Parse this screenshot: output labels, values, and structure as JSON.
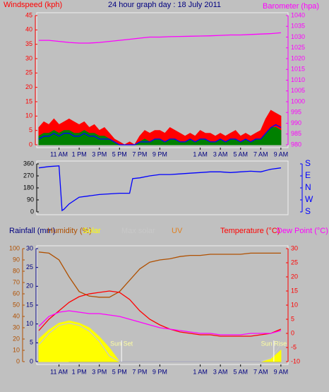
{
  "chart_data": [
    {
      "type": "line",
      "title": "24 hour graph day : 18 July 2011",
      "y_label": "Windspeed (kph)",
      "y2_label": "Barometer (hpa)",
      "ycolor": "#ff0000",
      "y2color": "#ff00ff",
      "xlim": [
        0,
        24.5
      ],
      "xticks": [
        {
          "value": 2,
          "label": "11 AM"
        },
        {
          "value": 4,
          "label": "1 PM"
        },
        {
          "value": 6,
          "label": "3 PM"
        },
        {
          "value": 8,
          "label": "5 PM"
        },
        {
          "value": 10,
          "label": "7 PM"
        },
        {
          "value": 12,
          "label": "9 PM"
        },
        {
          "value": 16,
          "label": "1 AM"
        },
        {
          "value": 18,
          "label": "3 AM"
        },
        {
          "value": 20,
          "label": "5 AM"
        },
        {
          "value": 22,
          "label": "7 AM"
        },
        {
          "value": 24,
          "label": "9 AM"
        }
      ],
      "ylim": [
        0,
        45
      ],
      "yticks": [
        0,
        5,
        10,
        15,
        20,
        25,
        30,
        35,
        40,
        45
      ],
      "y2lim": [
        980,
        1040
      ],
      "y2ticks": [
        980,
        985,
        990,
        995,
        1000,
        1005,
        1010,
        1015,
        1020,
        1025,
        1030,
        1035,
        1040
      ],
      "series": [
        {
          "color": "#ff0000",
          "fill": true,
          "x": [
            0,
            0.5,
            1,
            1.5,
            2,
            2.5,
            3,
            3.5,
            4,
            4.5,
            5,
            5.5,
            6,
            6.5,
            7,
            7.5,
            8,
            8.5,
            9,
            9.5,
            10,
            10.5,
            11,
            11.5,
            12,
            12.5,
            13,
            13.5,
            14,
            14.5,
            15,
            15.5,
            16,
            16.5,
            17,
            17.5,
            18,
            18.5,
            19,
            19.5,
            20,
            20.5,
            21,
            21.5,
            22,
            22.5,
            23,
            23.5,
            24
          ],
          "values": [
            6,
            8,
            7,
            9,
            7,
            8,
            9,
            8,
            7,
            8,
            6,
            7,
            5,
            6,
            4,
            2,
            1,
            0,
            1,
            0,
            3,
            5,
            4,
            5,
            5,
            4,
            6,
            5,
            4,
            3,
            4,
            3,
            5,
            4,
            4,
            3,
            4,
            3,
            4,
            5,
            3,
            4,
            3,
            4,
            5,
            9,
            12,
            11,
            10
          ]
        },
        {
          "color": "#008000",
          "fill": true,
          "x": [
            0,
            0.5,
            1,
            1.5,
            2,
            2.5,
            3,
            3.5,
            4,
            4.5,
            5,
            5.5,
            6,
            6.5,
            7,
            7.5,
            8,
            8.5,
            9,
            9.5,
            10,
            10.5,
            11,
            11.5,
            12,
            12.5,
            13,
            13.5,
            14,
            14.5,
            15,
            15.5,
            16,
            16.5,
            17,
            17.5,
            18,
            18.5,
            19,
            19.5,
            20,
            20.5,
            21,
            21.5,
            22,
            22.5,
            23,
            23.5,
            24
          ],
          "values": [
            3,
            4,
            4,
            5,
            4,
            5,
            5,
            4,
            4,
            5,
            4,
            4,
            3,
            3,
            2,
            1,
            0,
            0,
            0,
            0,
            1,
            2,
            1,
            2,
            2,
            1,
            2,
            2,
            1,
            1,
            2,
            1,
            2,
            2,
            1,
            1,
            2,
            1,
            2,
            2,
            1,
            2,
            1,
            2,
            2,
            4,
            6,
            6,
            5
          ]
        },
        {
          "color": "#0000ff",
          "fill": false,
          "x": [
            0,
            0.5,
            1,
            1.5,
            2,
            2.5,
            3,
            3.5,
            4,
            4.5,
            5,
            5.5,
            6,
            6.5,
            7,
            7.5,
            8,
            8.5,
            9,
            9.5,
            10,
            10.5,
            11,
            11.5,
            12,
            12.5,
            13,
            13.5,
            14,
            14.5,
            15,
            15.5,
            16,
            16.5,
            17,
            17.5,
            18,
            18.5,
            19,
            19.5,
            20,
            20.5,
            21,
            21.5,
            22,
            22.5,
            23,
            23.5,
            24
          ],
          "values": [
            2,
            3,
            3,
            4,
            3,
            4,
            4,
            3,
            3,
            4,
            3,
            3,
            2,
            2,
            2,
            1,
            0,
            0,
            0,
            0,
            1,
            1,
            1,
            2,
            2,
            1,
            2,
            2,
            1,
            1,
            2,
            1,
            2,
            2,
            1,
            1,
            2,
            1,
            2,
            2,
            1,
            2,
            1,
            2,
            2,
            4,
            6,
            7,
            6
          ]
        },
        {
          "color": "#ff00ff",
          "fill": false,
          "axis": "y2",
          "x": [
            0,
            1,
            2,
            3,
            4,
            5,
            6,
            7,
            8,
            9,
            10,
            11,
            12,
            13,
            14,
            15,
            16,
            17,
            18,
            19,
            20,
            21,
            22,
            23,
            24
          ],
          "values": [
            1028.5,
            1028.5,
            1028,
            1027.5,
            1027.2,
            1027.2,
            1027.5,
            1028,
            1028.5,
            1029,
            1029.5,
            1030,
            1030,
            1030.2,
            1030.3,
            1030.4,
            1030.5,
            1030.6,
            1030.8,
            1031,
            1031,
            1031.2,
            1031.4,
            1031.6,
            1032
          ]
        }
      ]
    },
    {
      "type": "line",
      "ycolor": "#000000",
      "y2color": "#0000ff",
      "xlim": [
        0,
        24.5
      ],
      "ylim": [
        0,
        360
      ],
      "yticks": [
        0,
        90,
        180,
        270,
        360
      ],
      "y2lim": [
        0,
        360
      ],
      "y2ticks": [
        {
          "value": 360,
          "label": "S"
        },
        {
          "value": 270,
          "label": "E"
        },
        {
          "value": 180,
          "label": "N"
        },
        {
          "value": 90,
          "label": "W"
        },
        {
          "value": 0,
          "label": "S"
        }
      ],
      "series": [
        {
          "color": "#0000ff",
          "fill": false,
          "x": [
            0,
            1,
            2,
            2.3,
            2.5,
            3,
            4,
            5,
            6,
            7,
            8,
            9,
            9.3,
            10,
            11,
            12,
            13,
            14,
            15,
            16,
            17,
            18,
            19,
            20,
            21,
            22,
            23,
            24
          ],
          "values": [
            330,
            340,
            345,
            10,
            20,
            60,
            110,
            120,
            130,
            135,
            140,
            140,
            250,
            255,
            270,
            280,
            280,
            285,
            290,
            295,
            300,
            300,
            295,
            300,
            305,
            300,
            320,
            330
          ]
        }
      ]
    },
    {
      "type": "line",
      "ycolor": "#b05000",
      "y3color": "#000080",
      "y2color": "#ff0000",
      "xlim": [
        0,
        24.5
      ],
      "xticks": [
        {
          "value": 2,
          "label": "11 AM"
        },
        {
          "value": 4,
          "label": "1 PM"
        },
        {
          "value": 6,
          "label": "3 PM"
        },
        {
          "value": 8,
          "label": "5 PM"
        },
        {
          "value": 10,
          "label": "7 PM"
        },
        {
          "value": 12,
          "label": "9 PM"
        },
        {
          "value": 16,
          "label": "1 AM"
        },
        {
          "value": 18,
          "label": "3 AM"
        },
        {
          "value": 20,
          "label": "5 AM"
        },
        {
          "value": 22,
          "label": "7 AM"
        },
        {
          "value": 24,
          "label": "9 AM"
        }
      ],
      "ylim": [
        0,
        100
      ],
      "yticks": [
        0,
        10,
        20,
        30,
        40,
        50,
        60,
        70,
        80,
        90,
        100
      ],
      "y3lim": [
        0,
        30
      ],
      "y3ticks": [
        0,
        5,
        10,
        15,
        20,
        25,
        30
      ],
      "y2lim": [
        -10,
        30
      ],
      "y2ticks": [
        -10,
        -5,
        0,
        5,
        10,
        15,
        20,
        25,
        30
      ],
      "extra_labels": [
        {
          "text": "UV",
          "color": "#e08020"
        }
      ],
      "annotations": [
        {
          "text": "Sun Set",
          "x": 8.2
        },
        {
          "text": "Sun Rise",
          "x": 23.3
        }
      ],
      "series": [
        {
          "name": "Rainfall (mm)",
          "color": "#000080",
          "fill": false,
          "axis": "y3",
          "x": [
            0,
            1,
            2,
            3,
            4,
            5,
            6,
            7,
            8,
            9,
            10,
            11,
            12,
            13,
            14,
            15,
            16,
            17,
            18,
            19,
            20,
            21,
            22,
            23,
            24
          ],
          "values": [
            0,
            0.3,
            0.3,
            0,
            0,
            0,
            0,
            0,
            0,
            0,
            0,
            0,
            0,
            0,
            0,
            0,
            0,
            0,
            0,
            0,
            0,
            0,
            0,
            0,
            0
          ]
        },
        {
          "name": "Humidity (%)",
          "color": "#b05000",
          "fill": false,
          "x": [
            0,
            1,
            2,
            3,
            4,
            5,
            6,
            7,
            8,
            9,
            10,
            11,
            12,
            13,
            14,
            15,
            16,
            17,
            18,
            19,
            20,
            21,
            22,
            23,
            24
          ],
          "values": [
            97,
            96,
            90,
            75,
            62,
            58,
            57,
            57,
            62,
            72,
            82,
            88,
            90,
            91,
            93,
            94,
            94,
            95,
            95,
            95,
            95,
            96,
            96,
            96,
            96
          ]
        },
        {
          "name": "Solar",
          "color": "#ffff00",
          "fill": true,
          "x": [
            0,
            1,
            2,
            3,
            4,
            5,
            6,
            7,
            8,
            9,
            10,
            11,
            12,
            13,
            14,
            15,
            16,
            17,
            18,
            19,
            20,
            21,
            22,
            23,
            24
          ],
          "values": [
            20,
            28,
            34,
            36,
            34,
            30,
            22,
            12,
            0,
            0,
            0,
            0,
            0,
            0,
            0,
            0,
            0,
            0,
            0,
            0,
            0,
            0,
            0,
            2,
            10
          ]
        },
        {
          "name": "Max solar",
          "color": "#c8c8c8",
          "fill": false,
          "x": [
            0,
            1,
            2,
            3,
            4,
            5,
            6,
            7,
            8,
            9,
            10,
            11,
            12,
            13,
            14,
            15,
            16,
            17,
            18,
            19,
            20,
            21,
            22,
            23,
            24
          ],
          "values": [
            15,
            25,
            32,
            34,
            32,
            27,
            18,
            5,
            0,
            0,
            0,
            0,
            0,
            0,
            0,
            0,
            0,
            0,
            0,
            0,
            0,
            0,
            0,
            3,
            15
          ]
        },
        {
          "name": "Temperature (°C)",
          "color": "#ff0000",
          "fill": false,
          "axis": "y2",
          "x": [
            0,
            1,
            2,
            3,
            4,
            5,
            6,
            7,
            8,
            9,
            10,
            11,
            12,
            13,
            14,
            15,
            16,
            17,
            18,
            19,
            20,
            21,
            22,
            23,
            24
          ],
          "values": [
            1,
            5,
            8,
            11,
            13,
            14,
            14.5,
            15,
            14.5,
            12,
            8,
            5,
            3,
            1.5,
            0.5,
            0,
            -0.5,
            -0.5,
            -1,
            -1,
            -1,
            -1,
            -0.5,
            0,
            1.5
          ]
        },
        {
          "name": "Dew Point (°C)",
          "color": "#ff00ff",
          "fill": false,
          "axis": "y2",
          "x": [
            0,
            1,
            2,
            3,
            4,
            5,
            6,
            7,
            8,
            9,
            10,
            11,
            12,
            13,
            14,
            15,
            16,
            17,
            18,
            19,
            20,
            21,
            22,
            23,
            24
          ],
          "values": [
            2.5,
            6,
            7.5,
            8,
            7.5,
            7,
            7,
            6.5,
            6,
            5,
            4,
            3,
            2,
            1.5,
            1,
            0.5,
            0,
            0,
            -0.5,
            -0.5,
            -0.5,
            0,
            0,
            0,
            1
          ]
        }
      ]
    }
  ]
}
